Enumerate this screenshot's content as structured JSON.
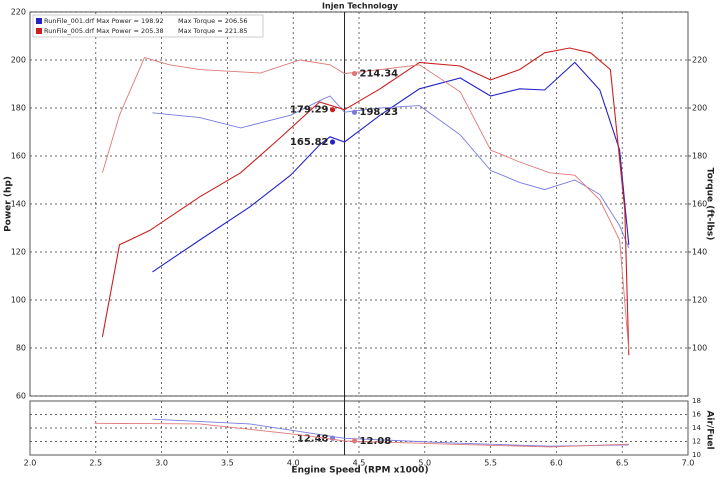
{
  "chart_data": {
    "type": "line",
    "title": "Injen Technology",
    "xlabel": "Engine Speed (RPM x1000)",
    "ylabel": "Power (hp)",
    "y2label": "Torque (ft-lbs)",
    "y3label": "Air/Fuel",
    "xlim": [
      2,
      7
    ],
    "xticks": [
      {
        "value": 2,
        "label": "2.0"
      },
      {
        "value": 2.5,
        "label": "2.5"
      },
      {
        "value": 3,
        "label": "3.0"
      },
      {
        "value": 3.5,
        "label": "3.5"
      },
      {
        "value": 4,
        "label": "4.0"
      },
      {
        "value": 4.5,
        "label": "4.5"
      },
      {
        "value": 5,
        "label": "5.0"
      },
      {
        "value": 5.5,
        "label": "5.5"
      },
      {
        "value": 6,
        "label": "6.0"
      },
      {
        "value": 6.5,
        "label": "6.5"
      },
      {
        "value": 7,
        "label": "7.0"
      }
    ],
    "ylim": [
      60,
      220
    ],
    "yticks": [
      60,
      80,
      100,
      120,
      140,
      160,
      180,
      200,
      220
    ],
    "y2lim": [
      80,
      240
    ],
    "y2ticks": [
      100,
      120,
      140,
      160,
      180,
      200,
      220
    ],
    "y3lim": [
      10,
      18
    ],
    "y3ticks": [
      10,
      12,
      14,
      16,
      18
    ],
    "grid": true,
    "cursor_x": 4.39,
    "series": [
      {
        "name": "RunFile_001.drf Max Power = 198.92",
        "color": "#2323c8",
        "axis": "y",
        "x": [
          2.93,
          3.29,
          3.67,
          3.98,
          4.2,
          4.28,
          4.39,
          4.66,
          4.96,
          5.27,
          5.5,
          5.72,
          5.91,
          6.14,
          6.33,
          6.48,
          6.55
        ],
        "values": [
          111.7,
          125,
          138.8,
          152,
          164.6,
          168,
          165.82,
          177,
          188,
          192.5,
          185,
          188,
          187.5,
          199,
          187.5,
          162.5,
          123
        ],
        "cursor_value": 165.82
      },
      {
        "name": "Max Torque = 206.56",
        "color": "#7a7ae0",
        "axis": "y2",
        "x": [
          2.93,
          3.29,
          3.6,
          3.98,
          4.2,
          4.28,
          4.39,
          4.66,
          4.96,
          5.27,
          5.5,
          5.72,
          5.91,
          6.14,
          6.33,
          6.48,
          6.55
        ],
        "values": [
          198,
          196,
          191.7,
          197,
          203,
          205,
          198.23,
          200,
          201,
          188.8,
          174,
          169,
          166,
          170,
          164,
          151,
          141.7
        ],
        "cursor_value": 198.23
      },
      {
        "name": "RunFile_005.drf Max Power = 205.38",
        "color": "#cc2020",
        "axis": "y",
        "x": [
          2.55,
          2.68,
          2.91,
          3.29,
          3.6,
          3.9,
          4.2,
          4.39,
          4.66,
          4.96,
          5.27,
          5.5,
          5.72,
          5.91,
          6.1,
          6.26,
          6.41,
          6.52,
          6.55
        ],
        "values": [
          84.6,
          123,
          129,
          143,
          153,
          167.5,
          182.5,
          179.29,
          188,
          199,
          197.5,
          191.7,
          196,
          203,
          205,
          203,
          196,
          137.5,
          77
        ],
        "cursor_value": 179.29
      },
      {
        "name": "Max Torque = 221.85",
        "color": "#e07878",
        "axis": "y2",
        "x": [
          2.55,
          2.68,
          2.87,
          3.06,
          3.29,
          3.75,
          4.05,
          4.28,
          4.39,
          4.66,
          4.96,
          5.27,
          5.5,
          5.72,
          5.95,
          6.14,
          6.33,
          6.48,
          6.55
        ],
        "values": [
          173,
          197,
          221,
          218,
          216,
          214.6,
          220,
          218,
          214.34,
          216,
          218,
          206.7,
          182.5,
          177.5,
          173,
          172,
          161.7,
          145,
          99
        ],
        "cursor_value": 214.34
      },
      {
        "color": "#7a7ae0",
        "axis": "y3",
        "x": [
          2.93,
          3.67,
          4.39,
          5.2,
          5.95,
          6.55
        ],
        "values": [
          15.3,
          14.6,
          12.48,
          11.8,
          11.3,
          11.5
        ],
        "cursor_value": 12.48
      },
      {
        "color": "#e07878",
        "axis": "y3",
        "x": [
          2.49,
          3.29,
          4.05,
          4.39,
          5.2,
          5.95,
          6.55
        ],
        "values": [
          14.7,
          14.6,
          13,
          12.08,
          11.6,
          11.2,
          11.6
        ],
        "cursor_value": 12.08
      }
    ]
  }
}
